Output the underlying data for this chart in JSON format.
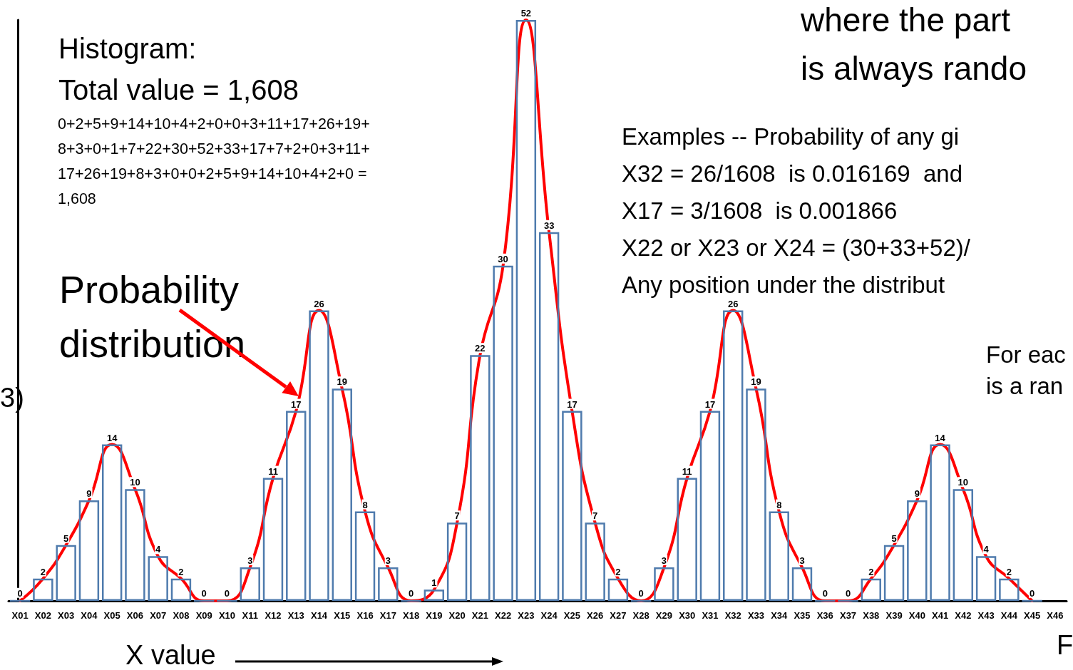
{
  "chart_data": {
    "type": "bar",
    "categories": [
      "X01",
      "X02",
      "X03",
      "X04",
      "X05",
      "X06",
      "X07",
      "X08",
      "X09",
      "X10",
      "X11",
      "X12",
      "X13",
      "X14",
      "X15",
      "X16",
      "X17",
      "X18",
      "X19",
      "X20",
      "X21",
      "X22",
      "X23",
      "X24",
      "X25",
      "X26",
      "X27",
      "X28",
      "X29",
      "X30",
      "X31",
      "X32",
      "X33",
      "X34",
      "X35",
      "X36",
      "X37",
      "X38",
      "X39",
      "X40",
      "X41",
      "X42",
      "X43",
      "X44",
      "X45",
      "X46"
    ],
    "series": [
      {
        "color": "#4f7bad",
        "values": [
          0,
          2,
          5,
          9,
          14,
          10,
          4,
          2,
          0,
          0,
          3,
          11,
          17,
          26,
          19,
          8,
          3,
          0,
          1,
          7,
          22,
          30,
          52,
          33,
          17,
          7,
          2,
          0,
          3,
          11,
          17,
          26,
          19,
          8,
          3,
          0,
          0,
          2,
          5,
          9,
          14,
          10,
          4,
          2,
          0,
          null
        ],
        "value_labels": [
          "0",
          "2",
          "5",
          "9",
          "14",
          "10",
          "4",
          "2",
          "0",
          "0",
          "3",
          "11",
          "17",
          "26",
          "19",
          "8",
          "3",
          "0",
          "1",
          "7",
          "22",
          "30",
          "52",
          "33",
          "17",
          "7",
          "2",
          "0",
          "3",
          "11",
          "17",
          "26",
          "19",
          "8",
          "3",
          "0",
          "0",
          "2",
          "5",
          "9",
          "14",
          "10",
          "4",
          "2",
          "0",
          null
        ]
      },
      {
        "type": "line",
        "color": "#ff0000",
        "values": [
          0,
          2,
          5,
          9,
          14,
          10,
          4,
          2,
          0,
          0,
          3,
          11,
          17,
          26,
          19,
          8,
          3,
          0,
          1,
          7,
          22,
          30,
          52,
          33,
          17,
          7,
          2,
          0,
          3,
          11,
          17,
          26,
          19,
          8,
          3,
          0,
          0,
          2,
          5,
          9,
          14,
          10,
          4,
          2,
          0,
          null
        ]
      }
    ],
    "xlabel": "X value",
    "annotations": [
      "Histogram:",
      "Total value = 1,608",
      "0+2+5+9+14+10+4+2+0+0+3+11+17+26+19+\n8+3+0+1+7+22+30+52+33+17+7+2+0+3+11+\n17+26+19+8+3+0+0+2+5+9+14+10+4+2+0 =\n1,608",
      "Probability distribution",
      "where the part\nis always rando",
      "Examples -- Probability of any gi\nX32 = 26/1608  is 0.016169  and\nX17 = 3/1608  is 0.001866\nX22 or X23 or X24 = (30+33+52)/\nAny position under the distribut",
      "For eac\nis a ran",
      "3)",
      "F"
    ],
    "marker": "none"
  }
}
